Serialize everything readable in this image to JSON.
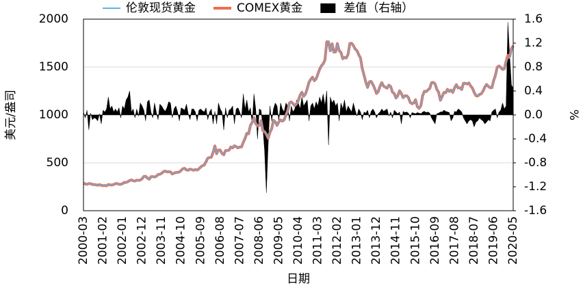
{
  "chart_data": {
    "type": "line",
    "xlabel": "日期",
    "ylabel": "美元/盎司",
    "y2label": "%",
    "categories": [
      "2000-03",
      null,
      null,
      null,
      null,
      null,
      null,
      null,
      null,
      null,
      null,
      "2001-02",
      null,
      null,
      null,
      null,
      null,
      null,
      null,
      null,
      null,
      null,
      "2002-01",
      null,
      null,
      null,
      null,
      null,
      null,
      null,
      null,
      null,
      null,
      "2002-12",
      null,
      null,
      null,
      null,
      null,
      null,
      null,
      null,
      null,
      null,
      "2003-11",
      null,
      null,
      null,
      null,
      null,
      null,
      null,
      null,
      null,
      null,
      "2004-10",
      null,
      null,
      null,
      null,
      null,
      null,
      null,
      null,
      null,
      null,
      "2005-09",
      null,
      null,
      null,
      null,
      null,
      null,
      null,
      null,
      null,
      null,
      "2006-08",
      null,
      null,
      null,
      null,
      null,
      null,
      null,
      null,
      null,
      null,
      "2007-07",
      null,
      null,
      null,
      null,
      null,
      null,
      null,
      null,
      null,
      null,
      "2008-06",
      null,
      null,
      null,
      null,
      null,
      null,
      null,
      null,
      null,
      null,
      "2009-05",
      null,
      null,
      null,
      null,
      null,
      null,
      null,
      null,
      null,
      null,
      "2010-04",
      null,
      null,
      null,
      null,
      null,
      null,
      null,
      null,
      null,
      null,
      "2011-03",
      null,
      null,
      null,
      null,
      null,
      null,
      null,
      null,
      null,
      null,
      "2012-02",
      null,
      null,
      null,
      null,
      null,
      null,
      null,
      null,
      null,
      null,
      "2013-01",
      null,
      null,
      null,
      null,
      null,
      null,
      null,
      null,
      null,
      null,
      "2013-12",
      null,
      null,
      null,
      null,
      null,
      null,
      null,
      null,
      null,
      null,
      "2014-11",
      null,
      null,
      null,
      null,
      null,
      null,
      null,
      null,
      null,
      null,
      "2015-10",
      null,
      null,
      null,
      null,
      null,
      null,
      null,
      null,
      null,
      null,
      "2016-09",
      null,
      null,
      null,
      null,
      null,
      null,
      null,
      null,
      null,
      null,
      "2017-08",
      null,
      null,
      null,
      null,
      null,
      null,
      null,
      null,
      null,
      null,
      "2018-07",
      null,
      null,
      null,
      null,
      null,
      null,
      null,
      null,
      null,
      null,
      "2019-06",
      null,
      null,
      null,
      null,
      null,
      null,
      null,
      null,
      null,
      null,
      "2020-05"
    ],
    "series": [
      {
        "name": "COMEX黄金",
        "color": "#f26b50",
        "values": [
          286,
          280,
          275,
          284,
          282,
          274,
          273,
          270,
          266,
          272,
          265,
          262,
          263,
          260,
          273,
          270,
          268,
          273,
          283,
          283,
          276,
          276,
          282,
          296,
          295,
          303,
          315,
          321,
          313,
          310,
          319,
          317,
          320,
          333,
          357,
          359,
          341,
          329,
          355,
          356,
          352,
          359,
          378,
          380,
          390,
          407,
          414,
          405,
          407,
          405,
          383,
          392,
          399,
          400,
          405,
          420,
          439,
          442,
          425,
          423,
          434,
          429,
          422,
          430,
          424,
          437,
          456,
          470,
          476,
          511,
          549,
          555,
          558,
          609,
          676,
          595,
          634,
          633,
          598,
          584,
          628,
          629,
          632,
          665,
          656,
          678,
          668,
          656,
          665,
          665,
          714,
          755,
          808,
          803,
          890,
          921,
          971,
          910,
          884,
          890,
          940,
          837,
          824,
          797,
          756,
          817,
          857,
          944,
          927,
          891,
          927,
          947,
          935,
          949,
          998,
          1045,
          1126,
          1136,
          1119,
          1096,
          1116,
          1150,
          1206,
          1236,
          1195,
          1217,
          1274,
          1342,
          1372,
          1394,
          1357,
          1375,
          1426,
          1477,
          1513,
          1534,
          1574,
          1763,
          1763,
          1670,
          1742,
          1656,
          1658,
          1745,
          1671,
          1653,
          1587,
          1600,
          1595,
          1632,
          1746,
          1748,
          1724,
          1689,
          1671,
          1629,
          1594,
          1484,
          1415,
          1342,
          1287,
          1346,
          1350,
          1317,
          1276,
          1224,
          1244,
          1301,
          1337,
          1300,
          1289,
          1280,
          1311,
          1297,
          1238,
          1223,
          1177,
          1201,
          1252,
          1225,
          1180,
          1199,
          1200,
          1181,
          1130,
          1117,
          1125,
          1159,
          1087,
          1068,
          1097,
          1201,
          1247,
          1243,
          1261,
          1276,
          1336,
          1340,
          1324,
          1267,
          1236,
          1153,
          1193,
          1235,
          1232,
          1267,
          1246,
          1259,
          1235,
          1284,
          1316,
          1281,
          1284,
          1266,
          1330,
          1330,
          1323,
          1334,
          1303,
          1281,
          1236,
          1201,
          1197,
          1214,
          1220,
          1249,
          1290,
          1318,
          1299,
          1284,
          1285,
          1360,
          1414,
          1499,
          1511,
          1496,
          1474,
          1481,
          1562,
          1622,
          1608,
          1691,
          1723
        ]
      },
      {
        "name": "伦敦现货黄金",
        "color": "#5ab4e5",
        "values": [
          286,
          280,
          275,
          285,
          282,
          274,
          273,
          270,
          266,
          272,
          265,
          262,
          263,
          260,
          272,
          270,
          268,
          273,
          283,
          283,
          276,
          276,
          282,
          296,
          294,
          302,
          314,
          321,
          313,
          310,
          319,
          317,
          319,
          333,
          357,
          359,
          340,
          328,
          355,
          356,
          351,
          359,
          378,
          379,
          389,
          407,
          414,
          405,
          406,
          404,
          383,
          392,
          398,
          400,
          405,
          420,
          439,
          442,
          424,
          423,
          434,
          429,
          422,
          430,
          424,
          437,
          456,
          470,
          476,
          510,
          549,
          555,
          557,
          610,
          676,
          596,
          633,
          632,
          598,
          585,
          627,
          629,
          631,
          664,
          655,
          679,
          667,
          655,
          665,
          665,
          712,
          754,
          806,
          803,
          889,
          922,
          968,
          909,
          888,
          889,
          939,
          839,
          829,
          807,
          760,
          816,
          858,
          943,
          925,
          890,
          928,
          945,
          934,
          949,
          996,
          1043,
          1127,
          1134,
          1118,
          1095,
          1113,
          1148,
          1205,
          1232,
          1193,
          1215,
          1271,
          1343,
          1370,
          1391,
          1356,
          1372,
          1424,
          1473,
          1510,
          1529,
          1572,
          1756,
          1772,
          1665,
          1739,
          1652,
          1656,
          1742,
          1673,
          1650,
          1585,
          1596,
          1594,
          1630,
          1744,
          1747,
          1721,
          1688,
          1671,
          1627,
          1593,
          1485,
          1414,
          1342,
          1286,
          1347,
          1349,
          1316,
          1275,
          1225,
          1244,
          1300,
          1336,
          1299,
          1288,
          1279,
          1311,
          1296,
          1239,
          1222,
          1176,
          1201,
          1251,
          1227,
          1179,
          1199,
          1199,
          1181,
          1131,
          1117,
          1125,
          1159,
          1087,
          1068,
          1097,
          1200,
          1246,
          1243,
          1260,
          1276,
          1337,
          1341,
          1326,
          1267,
          1236,
          1152,
          1192,
          1234,
          1231,
          1266,
          1246,
          1260,
          1236,
          1283,
          1315,
          1280,
          1283,
          1265,
          1331,
          1331,
          1325,
          1335,
          1304,
          1282,
          1238,
          1202,
          1198,
          1215,
          1221,
          1250,
          1292,
          1320,
          1300,
          1285,
          1284,
          1359,
          1413,
          1500,
          1510,
          1495,
          1471,
          1480,
          1560,
          1597,
          1592,
          1683,
          1715
        ]
      },
      {
        "name": "差值（右轴）",
        "color": "#000000",
        "axis": "y2",
        "values": [
          0.05,
          -0.05,
          0.08,
          -0.25,
          0.03,
          -0.08,
          -0.05,
          -0.06,
          -0.1,
          0.02,
          -0.15,
          0.08,
          0.05,
          0.1,
          0.3,
          0.1,
          0.15,
          0.05,
          0.1,
          0.05,
          0.12,
          -0.05,
          0.15,
          0.1,
          0.25,
          0.3,
          0.4,
          0.05,
          0.1,
          -0.05,
          0.1,
          -0.02,
          0.2,
          0.15,
          0.08,
          -0.1,
          0.22,
          0.25,
          0.05,
          -0.05,
          0.2,
          0.05,
          -0.08,
          0.18,
          0.15,
          0.1,
          0.06,
          0.12,
          0.22,
          0.2,
          -0.05,
          0.1,
          0.15,
          0.05,
          -0.1,
          0.12,
          0.1,
          0.08,
          0.18,
          0.02,
          -0.08,
          0.1,
          0.1,
          0.05,
          -0.1,
          0.08,
          0.1,
          0.07,
          0.05,
          0.12,
          -0.08,
          0.05,
          0.1,
          -0.15,
          0.06,
          -0.15,
          0.2,
          0.1,
          0.05,
          -0.25,
          0.12,
          -0.05,
          0.08,
          0.1,
          0.15,
          -0.15,
          0.1,
          0.12,
          0.05,
          -0.05,
          0.35,
          0.1,
          0.25,
          0.05,
          0.12,
          -0.15,
          0.35,
          0.1,
          -0.4,
          0.1,
          0.08,
          -0.2,
          -0.6,
          -1.3,
          -0.5,
          0.15,
          -0.1,
          0.1,
          0.2,
          0.15,
          -0.1,
          0.2,
          0.1,
          0.05,
          0.2,
          0.15,
          -0.1,
          0.15,
          0.05,
          0.1,
          0.25,
          0.2,
          0.1,
          0.3,
          0.15,
          0.2,
          0.25,
          -0.1,
          0.15,
          0.2,
          0.1,
          0.22,
          0.15,
          0.3,
          0.2,
          0.35,
          0.15,
          0.4,
          -0.5,
          0.3,
          0.2,
          0.25,
          0.15,
          0.2,
          -0.1,
          0.2,
          0.1,
          0.25,
          0.05,
          0.15,
          0.1,
          0.05,
          0.2,
          0.08,
          -0.02,
          0.1,
          0.05,
          -0.08,
          0.05,
          0.03,
          0.08,
          -0.05,
          0.06,
          0.1,
          0.05,
          -0.05,
          0.02,
          0.05,
          0.1,
          0.06,
          0.08,
          0.1,
          -0.02,
          0.05,
          -0.05,
          0.08,
          0.05,
          0.02,
          0.05,
          -0.15,
          0.06,
          0.04,
          0.05,
          0.03,
          -0.05,
          0.04,
          0.03,
          0.02,
          0.04,
          0.03,
          0.02,
          0.05,
          0.06,
          0.04,
          0.05,
          0.03,
          -0.05,
          -0.1,
          -0.15,
          0.02,
          0.03,
          0.05,
          0.05,
          0.08,
          0.06,
          0.05,
          0.04,
          -0.1,
          -0.05,
          0.06,
          0.05,
          0.1,
          0.08,
          0.05,
          -0.05,
          -0.1,
          -0.15,
          -0.1,
          -0.08,
          -0.1,
          -0.2,
          -0.12,
          -0.1,
          -0.05,
          -0.08,
          -0.1,
          -0.15,
          -0.12,
          -0.08,
          -0.1,
          0.05,
          0.08,
          0.1,
          -0.05,
          0.05,
          0.08,
          0.2,
          0.1,
          0.15,
          1.55,
          1.0,
          0.5,
          0.45
        ]
      }
    ],
    "ylim": [
      0,
      2000
    ],
    "yticks": [
      0,
      500,
      1000,
      1500,
      2000
    ],
    "y2lim": [
      -1.6,
      1.6
    ],
    "y2ticks": [
      -1.6,
      -1.2,
      -0.8,
      -0.4,
      {
        "value": 0,
        "label": "0.0"
      },
      0.4,
      0.8,
      1.2,
      1.6
    ],
    "grid": true
  }
}
